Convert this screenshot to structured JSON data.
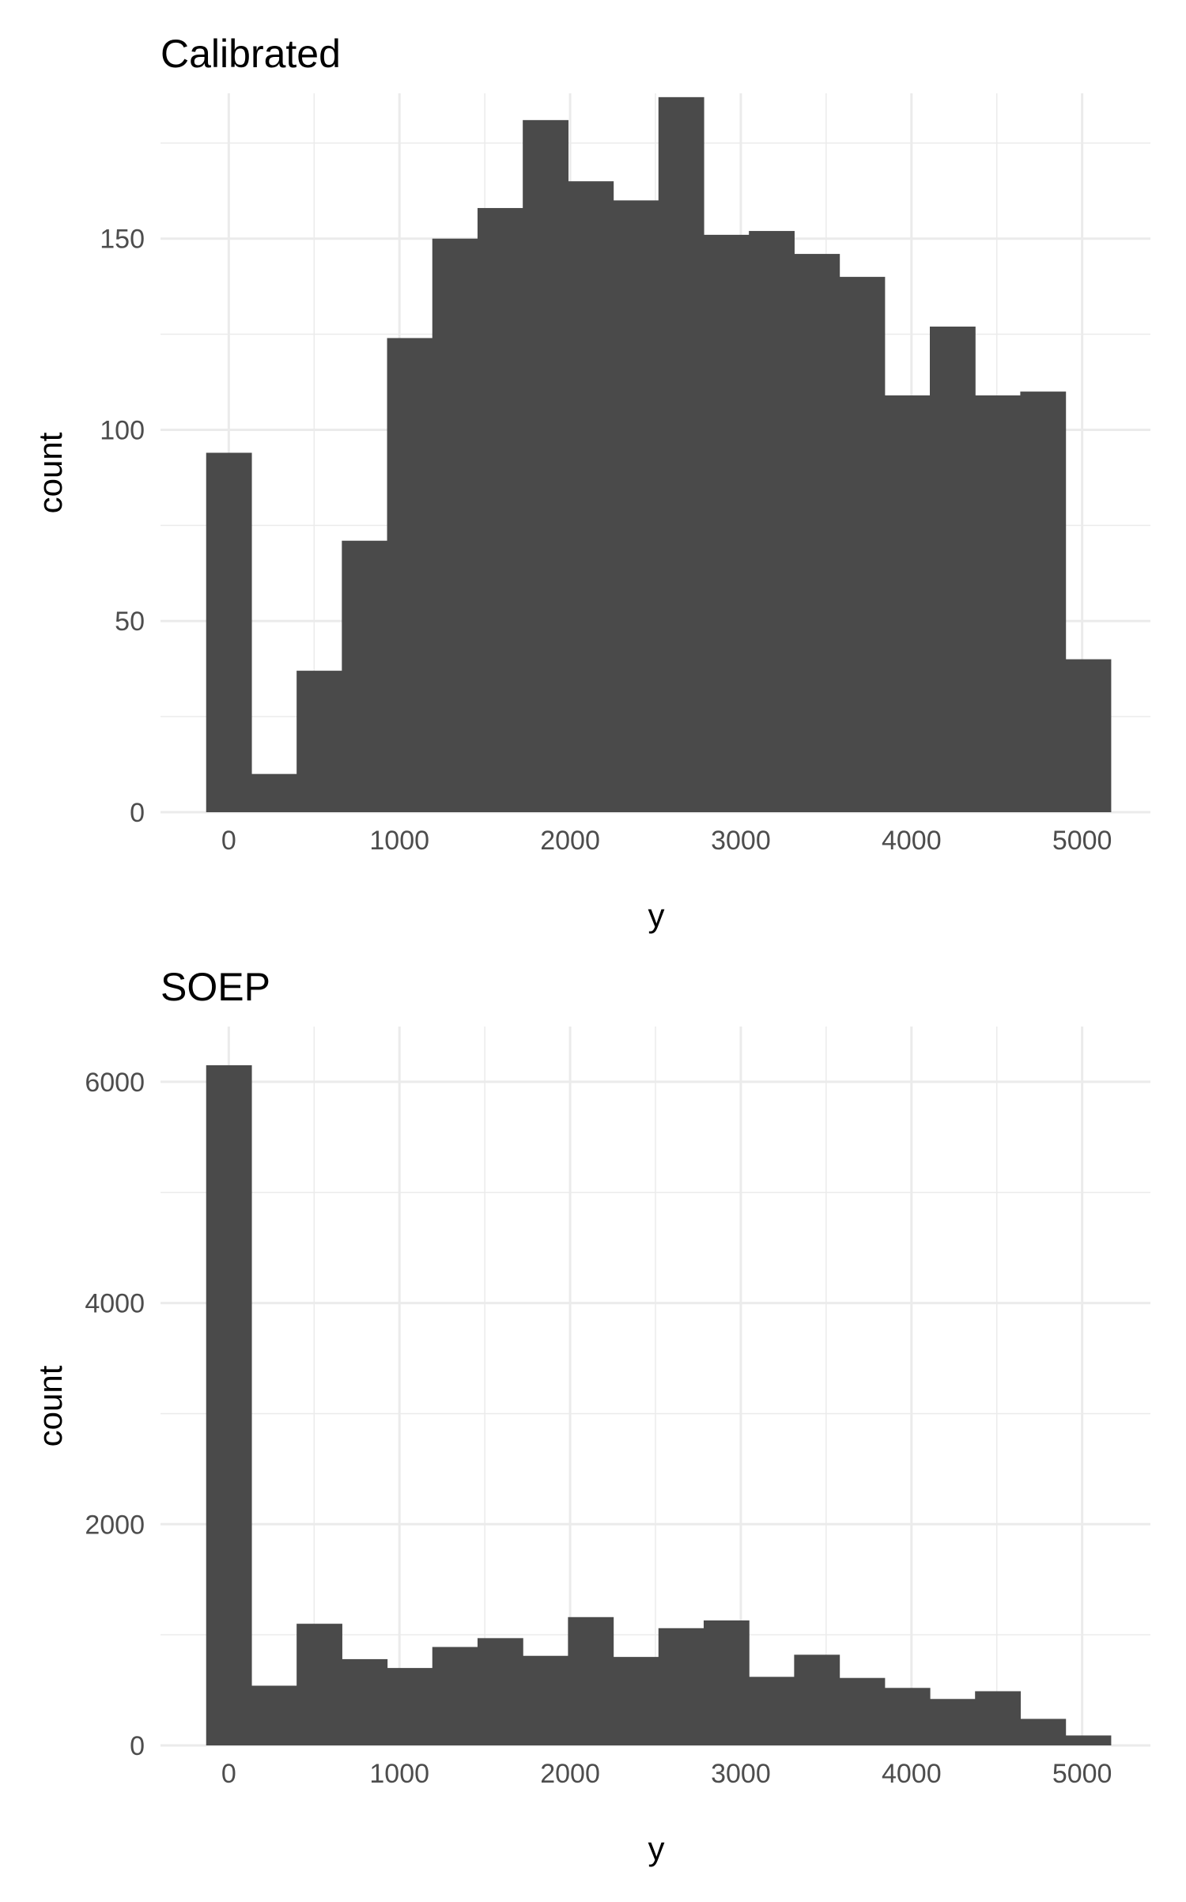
{
  "chart_data": [
    {
      "type": "bar",
      "subtype": "histogram",
      "title": "Calibrated",
      "xlabel": "y",
      "ylabel": "count",
      "bin_width": 265,
      "bin_centers": [
        0,
        265,
        530,
        795,
        1060,
        1325,
        1590,
        1855,
        2120,
        2385,
        2650,
        2915,
        3180,
        3445,
        3710,
        3975,
        4240,
        4505,
        4770,
        5035
      ],
      "values": [
        94,
        10,
        37,
        71,
        124,
        150,
        158,
        181,
        165,
        160,
        187,
        151,
        152,
        146,
        140,
        109,
        127,
        109,
        110,
        40
      ],
      "xlim": [
        -400,
        5400
      ],
      "ylim": [
        0,
        188
      ],
      "x_ticks": [
        0,
        1000,
        2000,
        3000,
        4000,
        5000
      ],
      "x_tick_labels": [
        "0",
        "1000",
        "2000",
        "3000",
        "4000",
        "5000"
      ],
      "y_ticks": [
        0,
        50,
        100,
        150
      ],
      "y_tick_labels": [
        "0",
        "50",
        "100",
        "150"
      ],
      "bar_color": "#4a4a4a",
      "grid": true
    },
    {
      "type": "bar",
      "subtype": "histogram",
      "title": "SOEP",
      "xlabel": "y",
      "ylabel": "count",
      "bin_width": 265,
      "bin_centers": [
        0,
        265,
        530,
        795,
        1060,
        1325,
        1590,
        1855,
        2120,
        2385,
        2650,
        2915,
        3180,
        3445,
        3710,
        3975,
        4240,
        4505,
        4770,
        5035
      ],
      "values": [
        6150,
        540,
        1100,
        780,
        700,
        890,
        970,
        810,
        1160,
        800,
        1060,
        1130,
        620,
        820,
        610,
        520,
        420,
        490,
        240,
        90
      ],
      "xlim": [
        -400,
        5400
      ],
      "ylim": [
        0,
        6500
      ],
      "x_ticks": [
        0,
        1000,
        2000,
        3000,
        4000,
        5000
      ],
      "x_tick_labels": [
        "0",
        "1000",
        "2000",
        "3000",
        "4000",
        "5000"
      ],
      "y_ticks": [
        0,
        2000,
        4000,
        6000
      ],
      "y_tick_labels": [
        "0",
        "2000",
        "4000",
        "6000"
      ],
      "bar_color": "#4a4a4a",
      "grid": true
    }
  ]
}
